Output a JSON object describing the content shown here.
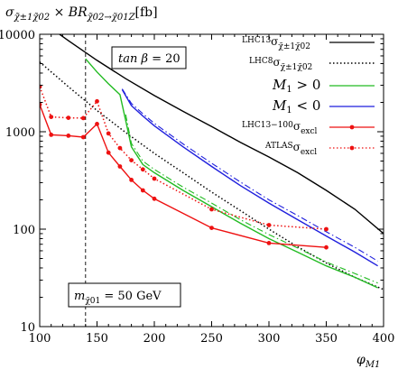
{
  "chart_data": {
    "type": "line",
    "ylabel": "σ_{χ̃1±χ̃2⁰} × BR_{χ̃2⁰→χ̃1⁰Z}[fb]",
    "xlabel": "φ_{M1}",
    "xlim": [
      100,
      400
    ],
    "ylim": [
      10,
      10000
    ],
    "yscale": "log",
    "x_ticks": [
      "100",
      "150",
      "200",
      "250",
      "300",
      "350",
      "400"
    ],
    "y_ticks": [
      "10",
      "100",
      "1000",
      "10000"
    ],
    "grid": false,
    "legend_position": "top-right",
    "annotations": {
      "tan_beta": "tan β = 20",
      "mass": "m_{χ̃1⁰} = 50 GeV",
      "vline_x": 140
    },
    "series": [
      {
        "name": "LHC13 σ_{χ̃1±χ̃2⁰}",
        "legend_main": "σ",
        "legend_sup": "LHC13",
        "legend_sub": "χ̃±1χ̃02",
        "color": "#000000",
        "style": "solid",
        "x": [
          100,
          125,
          150,
          175,
          200,
          225,
          250,
          275,
          300,
          325,
          350,
          375,
          400
        ],
        "y": [
          14000,
          8600,
          5400,
          3500,
          2350,
          1620,
          1130,
          780,
          550,
          380,
          250,
          160,
          90
        ]
      },
      {
        "name": "LHC8 σ_{χ̃1±χ̃2⁰}",
        "legend_main": "σ",
        "legend_sup": "LHC8",
        "legend_sub": "χ̃±1χ̃02",
        "color": "#000000",
        "style": "dotted",
        "x": [
          100,
          125,
          150,
          175,
          200,
          225,
          250,
          275,
          300,
          325,
          350,
          375,
          400
        ],
        "y": [
          5200,
          2900,
          1650,
          980,
          600,
          380,
          240,
          155,
          100,
          66,
          45,
          32,
          24
        ]
      },
      {
        "name": "M1 > 0",
        "legend_main": "M₁ > 0",
        "color": "#22bb22",
        "style": "solid",
        "x": [
          140,
          150,
          160,
          170,
          175,
          180,
          190,
          200,
          225,
          250,
          275,
          300,
          325,
          350,
          375,
          395
        ],
        "y": [
          5600,
          4100,
          3100,
          2400,
          1300,
          700,
          460,
          380,
          250,
          170,
          115,
          80,
          58,
          42,
          32,
          25
        ]
      },
      {
        "name": "M1 > 0 (alt)",
        "legend_main": "",
        "color": "#22bb22",
        "style": "dashdot",
        "x": [
          175,
          180,
          190,
          200,
          225,
          250,
          275,
          300,
          325,
          350,
          375,
          395
        ],
        "y": [
          1500,
          760,
          500,
          410,
          270,
          185,
          125,
          88,
          64,
          46,
          35,
          28
        ]
      },
      {
        "name": "M1 < 0",
        "legend_main": "M₁ < 0",
        "color": "#1f1fdd",
        "style": "solid",
        "x": [
          172,
          180,
          190,
          200,
          225,
          250,
          275,
          300,
          325,
          350,
          375,
          395
        ],
        "y": [
          2700,
          1850,
          1450,
          1150,
          700,
          440,
          280,
          185,
          125,
          85,
          58,
          42
        ]
      },
      {
        "name": "M1 < 0 (alt)",
        "legend_main": "",
        "color": "#1f1fdd",
        "style": "dashdot",
        "x": [
          172,
          180,
          190,
          200,
          225,
          250,
          275,
          300,
          325,
          350,
          375,
          395
        ],
        "y": [
          2750,
          1950,
          1530,
          1220,
          750,
          475,
          305,
          200,
          138,
          94,
          65,
          47
        ]
      },
      {
        "name": "LHC13−100 σ_excl",
        "legend_main": "σ",
        "legend_sup": "LHC13−100",
        "legend_sub": "excl",
        "color": "#ee1111",
        "style": "solid",
        "markers": true,
        "x": [
          100,
          110,
          125,
          138,
          150,
          160,
          170,
          180,
          190,
          200,
          250,
          300,
          350
        ],
        "y": [
          1900,
          930,
          910,
          880,
          1200,
          610,
          440,
          320,
          250,
          205,
          103,
          72,
          65
        ]
      },
      {
        "name": "ATLAS σ_excl",
        "legend_main": "σ",
        "legend_sup": "ATLAS",
        "legend_sub": "excl",
        "color": "#ee1111",
        "style": "dotted",
        "markers": true,
        "x": [
          100,
          110,
          125,
          138,
          150,
          160,
          170,
          180,
          190,
          200,
          250,
          300,
          350
        ],
        "y": [
          2900,
          1420,
          1390,
          1380,
          2050,
          960,
          680,
          510,
          410,
          330,
          160,
          110,
          100
        ]
      }
    ]
  }
}
